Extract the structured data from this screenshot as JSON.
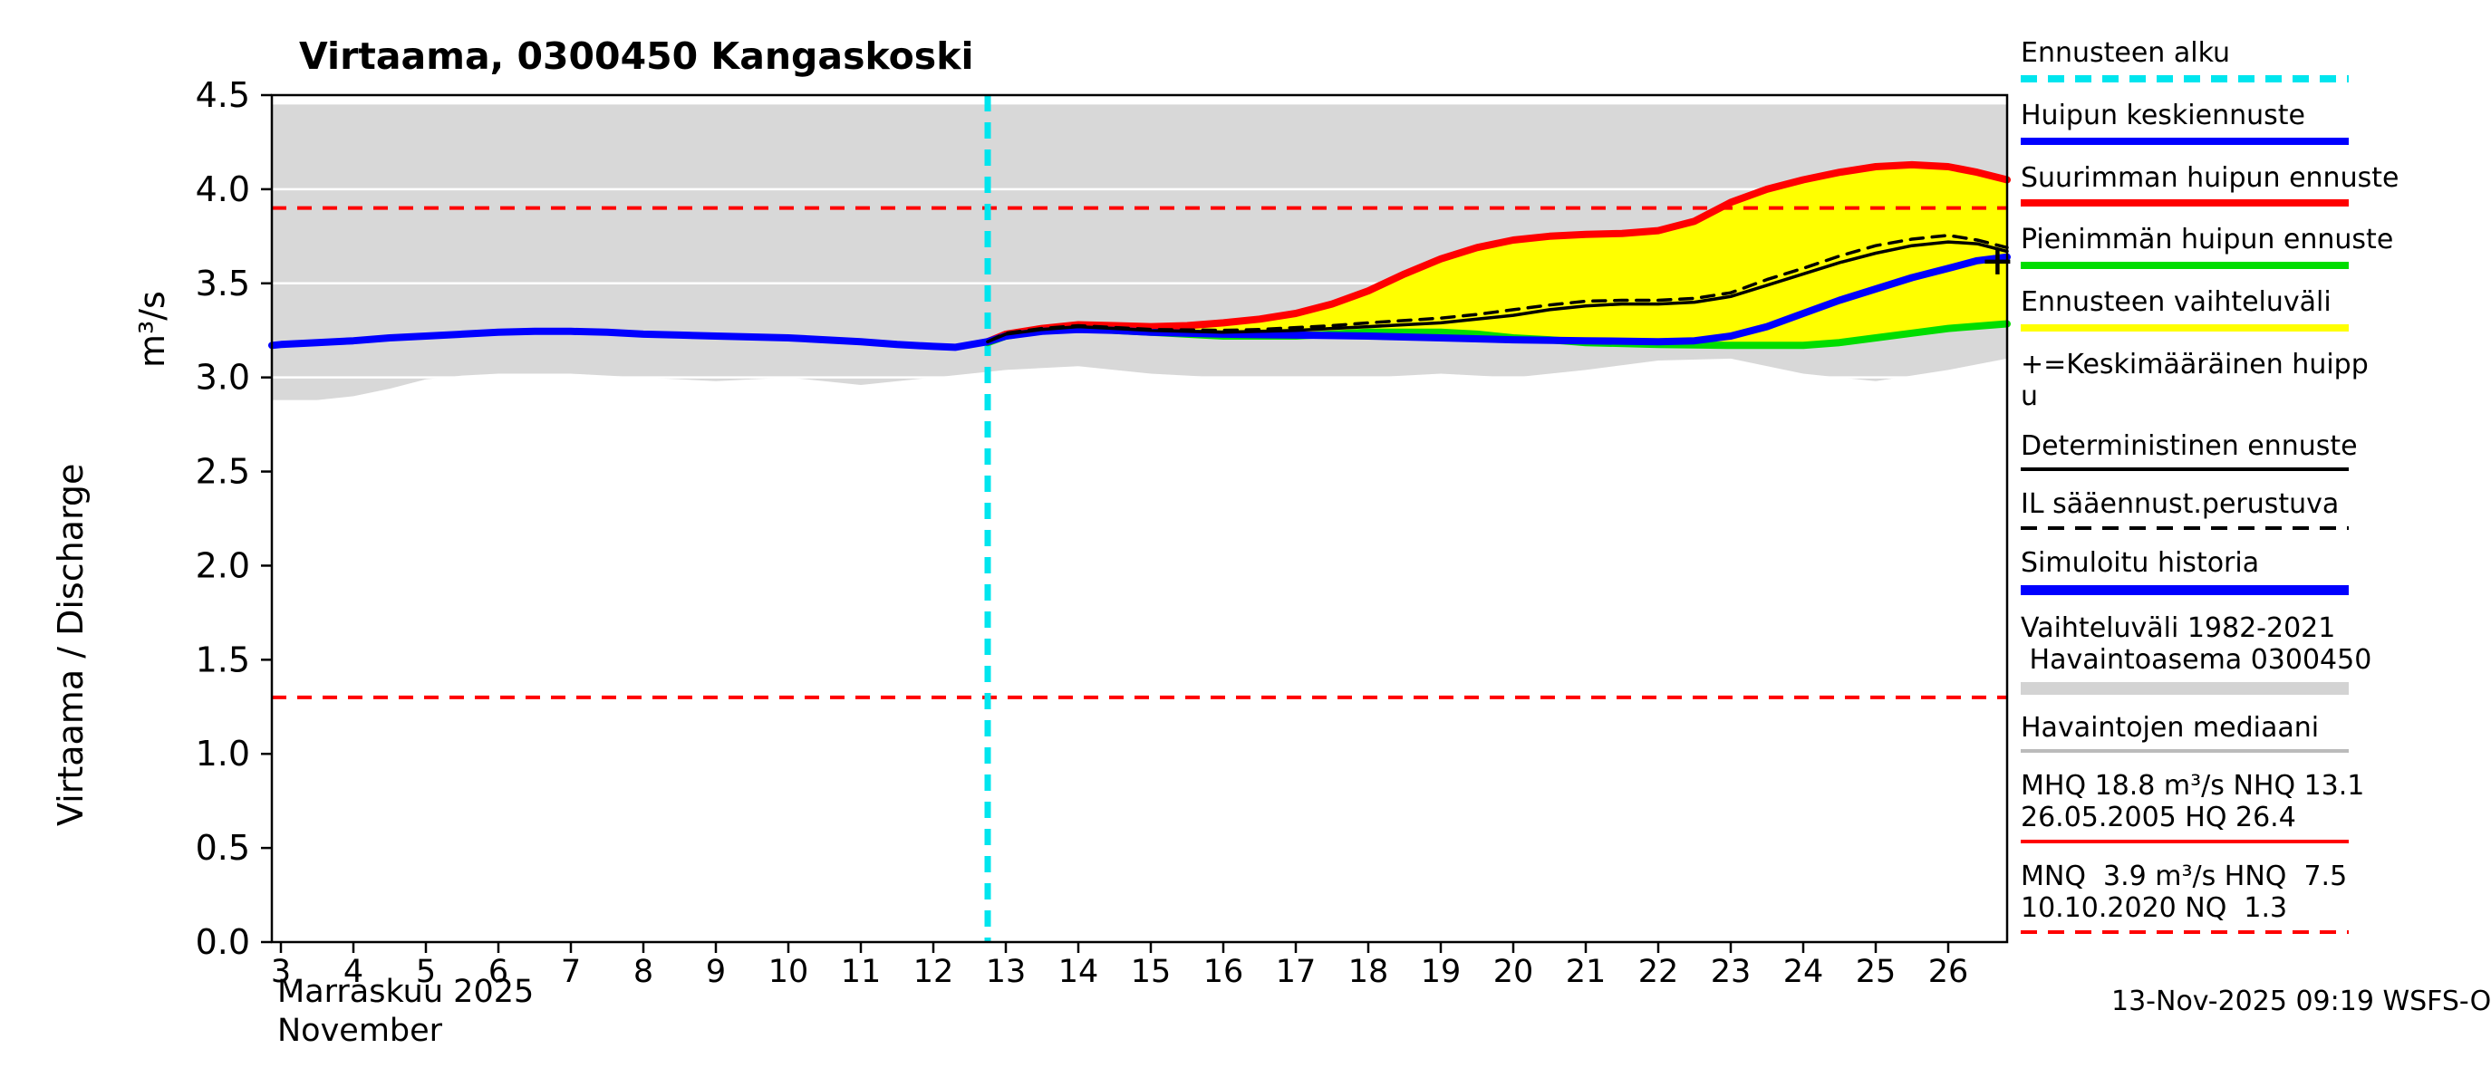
{
  "title": "Virtaama, 0300450 Kangaskoski",
  "y_axis": {
    "label": "Virtaama / Discharge",
    "unit": "m³/s"
  },
  "x_axis": {
    "month_fi": "Marraskuu 2025",
    "month_en": "November"
  },
  "footer": {
    "timestamp": "13-Nov-2025 09:19 WSFS-O"
  },
  "legend": {
    "items": [
      {
        "label": "Ennusteen alku",
        "line": {
          "color": "#00E5EE",
          "style": "dashed",
          "weight": 8
        }
      },
      {
        "label": "Huipun keskiennuste",
        "line": {
          "color": "#0000FF",
          "style": "solid",
          "weight": 8
        }
      },
      {
        "label": "Suurimman huipun ennuste",
        "line": {
          "color": "#FF0000",
          "style": "solid",
          "weight": 8
        }
      },
      {
        "label": "Pienimmän huipun ennuste",
        "line": {
          "color": "#00DD00",
          "style": "solid",
          "weight": 8
        }
      },
      {
        "label": "Ennusteen vaihteluväli",
        "line": {
          "color": "#FFFF00",
          "style": "solid",
          "weight": 8
        }
      },
      {
        "label": "+=Keskimääräinen huipp\nu",
        "line": null
      },
      {
        "label": "Deterministinen ennuste",
        "line": {
          "color": "#000000",
          "style": "solid",
          "weight": 4
        }
      },
      {
        "label": "IL sääennust.perustuva",
        "line": {
          "color": "#000000",
          "style": "dashed",
          "weight": 4
        }
      },
      {
        "label": "Simuloitu historia",
        "line": {
          "color": "#0000FF",
          "style": "solid",
          "weight": 11
        }
      },
      {
        "label": "Vaihteluväli 1982-2021\n Havaintoasema 0300450",
        "line": {
          "color": "#D3D3D3",
          "style": "solid",
          "weight": 14
        }
      },
      {
        "label": "Havaintojen mediaani",
        "line": {
          "color": "#BBBBBB",
          "style": "solid",
          "weight": 4
        }
      },
      {
        "label": "MHQ 18.8 m³/s NHQ 13.1\n26.05.2005 HQ 26.4",
        "line": {
          "color": "#FF0000",
          "style": "solid",
          "weight": 4
        }
      },
      {
        "label": "MNQ  3.9 m³/s HNQ  7.5\n10.10.2020 NQ  1.3",
        "line": {
          "color": "#FF0000",
          "style": "dashed",
          "weight": 4
        }
      }
    ]
  },
  "chart_data": {
    "type": "line",
    "title": "Virtaama, 0300450 Kangaskoski",
    "ylabel": "Virtaama / Discharge",
    "y_unit": "m³/s",
    "ylim": [
      0,
      4.5
    ],
    "yticks": [
      0,
      0.5,
      1,
      1.5,
      2,
      2.5,
      3,
      3.5,
      4,
      4.5
    ],
    "xticks": [
      3,
      4,
      5,
      6,
      7,
      8,
      9,
      10,
      11,
      12,
      13,
      14,
      15,
      16,
      17,
      18,
      19,
      20,
      21,
      22,
      23,
      24,
      25,
      26
    ],
    "xlabel_fi": "Marraskuu 2025",
    "xlabel_en": "November",
    "grid_color": "#FFFFFF",
    "forecast_start_day": 12.75,
    "bands": [
      {
        "name": "vaihteluvali-1982-2021",
        "color": "#D8D8D8",
        "upper": [
          [
            2.875,
            4.45
          ],
          [
            26.8125,
            4.45
          ]
        ],
        "lower": [
          [
            2.875,
            2.88
          ],
          [
            3.5,
            2.88
          ],
          [
            4,
            2.9
          ],
          [
            4.5,
            2.94
          ],
          [
            5,
            2.99
          ],
          [
            5.5,
            3.01
          ],
          [
            6,
            3.02
          ],
          [
            7,
            3.02
          ],
          [
            8,
            3.0
          ],
          [
            9,
            2.98
          ],
          [
            10,
            3.0
          ],
          [
            11,
            2.96
          ],
          [
            12,
            3.0
          ],
          [
            13,
            3.04
          ],
          [
            14,
            3.06
          ],
          [
            15,
            3.02
          ],
          [
            16,
            3.0
          ],
          [
            18,
            3.0
          ],
          [
            19,
            3.02
          ],
          [
            20,
            3.0
          ],
          [
            21,
            3.04
          ],
          [
            22,
            3.09
          ],
          [
            23,
            3.1
          ],
          [
            24,
            3.02
          ],
          [
            25,
            2.98
          ],
          [
            26,
            3.04
          ],
          [
            26.8125,
            3.1
          ]
        ]
      },
      {
        "name": "ennusteen-vaihteluvali",
        "color": "#FFFF00",
        "upper": [
          [
            12.75,
            3.19
          ],
          [
            13,
            3.23
          ],
          [
            13.5,
            3.26
          ],
          [
            14,
            3.28
          ],
          [
            14.5,
            3.275
          ],
          [
            15,
            3.27
          ],
          [
            15.5,
            3.275
          ],
          [
            16,
            3.29
          ],
          [
            16.5,
            3.31
          ],
          [
            17,
            3.34
          ],
          [
            17.5,
            3.39
          ],
          [
            18,
            3.46
          ],
          [
            18.5,
            3.55
          ],
          [
            19,
            3.63
          ],
          [
            19.5,
            3.69
          ],
          [
            20,
            3.73
          ],
          [
            20.5,
            3.75
          ],
          [
            21,
            3.76
          ],
          [
            21.5,
            3.765
          ],
          [
            22,
            3.78
          ],
          [
            22.5,
            3.83
          ],
          [
            23,
            3.93
          ],
          [
            23.5,
            4.0
          ],
          [
            24,
            4.05
          ],
          [
            24.5,
            4.09
          ],
          [
            25,
            4.12
          ],
          [
            25.5,
            4.13
          ],
          [
            26,
            4.12
          ],
          [
            26.4,
            4.09
          ],
          [
            26.8125,
            4.05
          ]
        ],
        "lower": [
          [
            12.75,
            3.185
          ],
          [
            13,
            3.22
          ],
          [
            13.5,
            3.25
          ],
          [
            14,
            3.265
          ],
          [
            14.5,
            3.25
          ],
          [
            15,
            3.24
          ],
          [
            15.5,
            3.23
          ],
          [
            16,
            3.22
          ],
          [
            17,
            3.22
          ],
          [
            17.5,
            3.23
          ],
          [
            18,
            3.24
          ],
          [
            19,
            3.24
          ],
          [
            19.5,
            3.23
          ],
          [
            20,
            3.21
          ],
          [
            20.5,
            3.2
          ],
          [
            21,
            3.185
          ],
          [
            22,
            3.175
          ],
          [
            23,
            3.17
          ],
          [
            24,
            3.17
          ],
          [
            24.5,
            3.185
          ],
          [
            25,
            3.21
          ],
          [
            25.5,
            3.235
          ],
          [
            26,
            3.26
          ],
          [
            26.8125,
            3.285
          ]
        ]
      }
    ],
    "h_reference_lines": [
      {
        "name": "MNQ 3.9",
        "value": 3.9,
        "color": "#FF0000",
        "style": "dashed"
      },
      {
        "name": "NQ 1.3",
        "value": 1.3,
        "color": "#FF0000",
        "style": "dashed"
      }
    ],
    "v_reference_lines": [
      {
        "name": "ennusteen-alku",
        "value": 12.75,
        "color": "#00E5EE",
        "style": "dashed"
      }
    ],
    "series": [
      {
        "name": "Pienimmän huipun ennuste",
        "color": "#00DD00",
        "width": 8,
        "style": "solid",
        "points": [
          [
            12.75,
            3.185
          ],
          [
            13,
            3.22
          ],
          [
            13.5,
            3.25
          ],
          [
            14,
            3.265
          ],
          [
            14.5,
            3.25
          ],
          [
            15,
            3.24
          ],
          [
            15.5,
            3.23
          ],
          [
            16,
            3.22
          ],
          [
            17,
            3.22
          ],
          [
            17.5,
            3.23
          ],
          [
            18,
            3.24
          ],
          [
            19,
            3.24
          ],
          [
            19.5,
            3.23
          ],
          [
            20,
            3.21
          ],
          [
            20.5,
            3.2
          ],
          [
            21,
            3.185
          ],
          [
            22,
            3.175
          ],
          [
            23,
            3.17
          ],
          [
            24,
            3.17
          ],
          [
            24.5,
            3.185
          ],
          [
            25,
            3.21
          ],
          [
            25.5,
            3.235
          ],
          [
            26,
            3.26
          ],
          [
            26.8125,
            3.285
          ]
        ]
      },
      {
        "name": "Suurimman huipun ennuste",
        "color": "#FF0000",
        "width": 8,
        "style": "solid",
        "points": [
          [
            12.75,
            3.19
          ],
          [
            13,
            3.23
          ],
          [
            13.5,
            3.26
          ],
          [
            14,
            3.28
          ],
          [
            14.5,
            3.275
          ],
          [
            15,
            3.27
          ],
          [
            15.5,
            3.275
          ],
          [
            16,
            3.29
          ],
          [
            16.5,
            3.31
          ],
          [
            17,
            3.34
          ],
          [
            17.5,
            3.39
          ],
          [
            18,
            3.46
          ],
          [
            18.5,
            3.55
          ],
          [
            19,
            3.63
          ],
          [
            19.5,
            3.69
          ],
          [
            20,
            3.73
          ],
          [
            20.5,
            3.75
          ],
          [
            21,
            3.76
          ],
          [
            21.5,
            3.765
          ],
          [
            22,
            3.78
          ],
          [
            22.5,
            3.83
          ],
          [
            23,
            3.93
          ],
          [
            23.5,
            4.0
          ],
          [
            24,
            4.05
          ],
          [
            24.5,
            4.09
          ],
          [
            25,
            4.12
          ],
          [
            25.5,
            4.13
          ],
          [
            26,
            4.12
          ],
          [
            26.4,
            4.09
          ],
          [
            26.8125,
            4.05
          ]
        ]
      },
      {
        "name": "Huipun keskiennuste",
        "color": "#0000FF",
        "width": 8,
        "style": "solid",
        "points": [
          [
            12.75,
            3.19
          ],
          [
            13,
            3.22
          ],
          [
            13.5,
            3.245
          ],
          [
            14,
            3.255
          ],
          [
            14.5,
            3.25
          ],
          [
            15,
            3.24
          ],
          [
            16,
            3.23
          ],
          [
            17,
            3.225
          ],
          [
            18,
            3.22
          ],
          [
            19,
            3.21
          ],
          [
            20,
            3.2
          ],
          [
            21,
            3.195
          ],
          [
            22,
            3.19
          ],
          [
            22.5,
            3.195
          ],
          [
            23,
            3.22
          ],
          [
            23.5,
            3.27
          ],
          [
            24,
            3.34
          ],
          [
            24.5,
            3.41
          ],
          [
            25,
            3.47
          ],
          [
            25.5,
            3.53
          ],
          [
            26,
            3.58
          ],
          [
            26.4,
            3.62
          ],
          [
            26.8125,
            3.64
          ]
        ]
      },
      {
        "name": "Simuloitu historia",
        "color": "#0000FF",
        "width": 8,
        "style": "solid",
        "points": [
          [
            2.875,
            3.17
          ],
          [
            3,
            3.175
          ],
          [
            3.5,
            3.185
          ],
          [
            4,
            3.195
          ],
          [
            4.5,
            3.21
          ],
          [
            5,
            3.22
          ],
          [
            5.5,
            3.23
          ],
          [
            6,
            3.24
          ],
          [
            6.5,
            3.245
          ],
          [
            7,
            3.245
          ],
          [
            7.5,
            3.24
          ],
          [
            8,
            3.23
          ],
          [
            8.5,
            3.225
          ],
          [
            9,
            3.22
          ],
          [
            9.5,
            3.215
          ],
          [
            10,
            3.21
          ],
          [
            10.5,
            3.2
          ],
          [
            11,
            3.19
          ],
          [
            11.5,
            3.175
          ],
          [
            12,
            3.165
          ],
          [
            12.3,
            3.16
          ],
          [
            12.75,
            3.19
          ]
        ]
      },
      {
        "name": "Deterministinen ennuste",
        "color": "#000000",
        "width": 3.5,
        "style": "solid",
        "points": [
          [
            12.75,
            3.19
          ],
          [
            13,
            3.23
          ],
          [
            13.5,
            3.255
          ],
          [
            14,
            3.27
          ],
          [
            14.5,
            3.26
          ],
          [
            15,
            3.25
          ],
          [
            16,
            3.24
          ],
          [
            16.5,
            3.245
          ],
          [
            17,
            3.25
          ],
          [
            17.5,
            3.26
          ],
          [
            18,
            3.27
          ],
          [
            19,
            3.29
          ],
          [
            19.5,
            3.31
          ],
          [
            20,
            3.33
          ],
          [
            20.5,
            3.36
          ],
          [
            21,
            3.38
          ],
          [
            21.5,
            3.39
          ],
          [
            22,
            3.39
          ],
          [
            22.5,
            3.4
          ],
          [
            23,
            3.43
          ],
          [
            23.5,
            3.49
          ],
          [
            24,
            3.55
          ],
          [
            24.5,
            3.61
          ],
          [
            25,
            3.66
          ],
          [
            25.5,
            3.7
          ],
          [
            26,
            3.72
          ],
          [
            26.4,
            3.71
          ],
          [
            26.8125,
            3.67
          ]
        ]
      },
      {
        "name": "IL sääennust.perustuva",
        "color": "#000000",
        "width": 3.5,
        "style": "dashed",
        "points": [
          [
            12.75,
            3.19
          ],
          [
            13,
            3.235
          ],
          [
            13.5,
            3.26
          ],
          [
            14,
            3.275
          ],
          [
            14.5,
            3.265
          ],
          [
            15,
            3.255
          ],
          [
            16,
            3.25
          ],
          [
            16.5,
            3.255
          ],
          [
            17,
            3.265
          ],
          [
            17.5,
            3.275
          ],
          [
            18,
            3.29
          ],
          [
            19,
            3.315
          ],
          [
            19.5,
            3.335
          ],
          [
            20,
            3.36
          ],
          [
            20.5,
            3.385
          ],
          [
            21,
            3.405
          ],
          [
            21.5,
            3.41
          ],
          [
            22,
            3.41
          ],
          [
            22.5,
            3.42
          ],
          [
            23,
            3.45
          ],
          [
            23.5,
            3.52
          ],
          [
            24,
            3.58
          ],
          [
            24.5,
            3.645
          ],
          [
            25,
            3.7
          ],
          [
            25.5,
            3.735
          ],
          [
            26,
            3.755
          ],
          [
            26.4,
            3.73
          ],
          [
            26.8125,
            3.69
          ]
        ]
      }
    ],
    "markers": [
      {
        "name": "keskimaarainen-huippu",
        "symbol": "+",
        "x": 26.68,
        "y": 3.615,
        "color": "#000000"
      }
    ]
  }
}
